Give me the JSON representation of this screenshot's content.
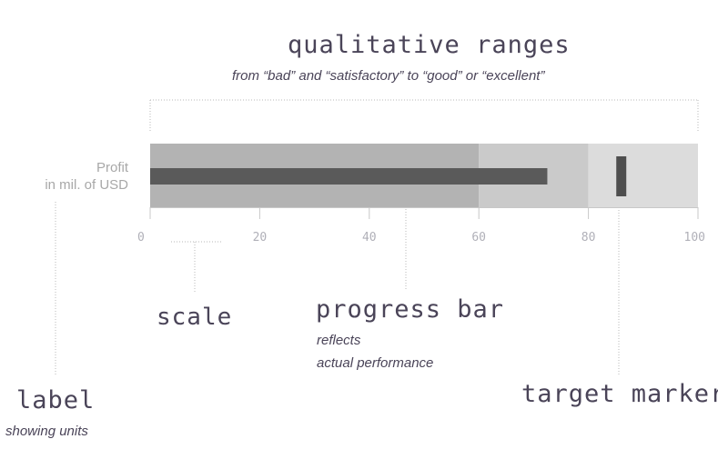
{
  "annotations": {
    "ranges_title": "qualitative ranges",
    "ranges_subtitle": "from “bad” and “satisfactory” to “good” or “excellent”",
    "scale_title": "scale",
    "progress_title": "progress bar",
    "progress_sub1": "reflects",
    "progress_sub2": "actual performance",
    "target_title": "target marker",
    "label_title": "label",
    "label_sub": "showing units"
  },
  "chart_data": {
    "type": "bullet",
    "label_line1": "Profit",
    "label_line2": "in mil. of USD",
    "axis": {
      "min": 0,
      "max": 100,
      "ticks": [
        0,
        20,
        40,
        60,
        80,
        100
      ]
    },
    "ranges": [
      {
        "from": 0,
        "to": 60
      },
      {
        "from": 60,
        "to": 80
      },
      {
        "from": 80,
        "to": 100
      }
    ],
    "value": 72.5,
    "target": 86,
    "colors": {
      "range_bad": "#b3b3b3",
      "range_satisfactory": "#cacaca",
      "range_good": "#dcdcdc",
      "bar": "#5a5a5a",
      "target": "#4e4e4e",
      "axis": "#c8c8c8",
      "tick_text": "#b0b0b8",
      "guide": "#b8b8b8",
      "text": "#4a4458"
    }
  }
}
